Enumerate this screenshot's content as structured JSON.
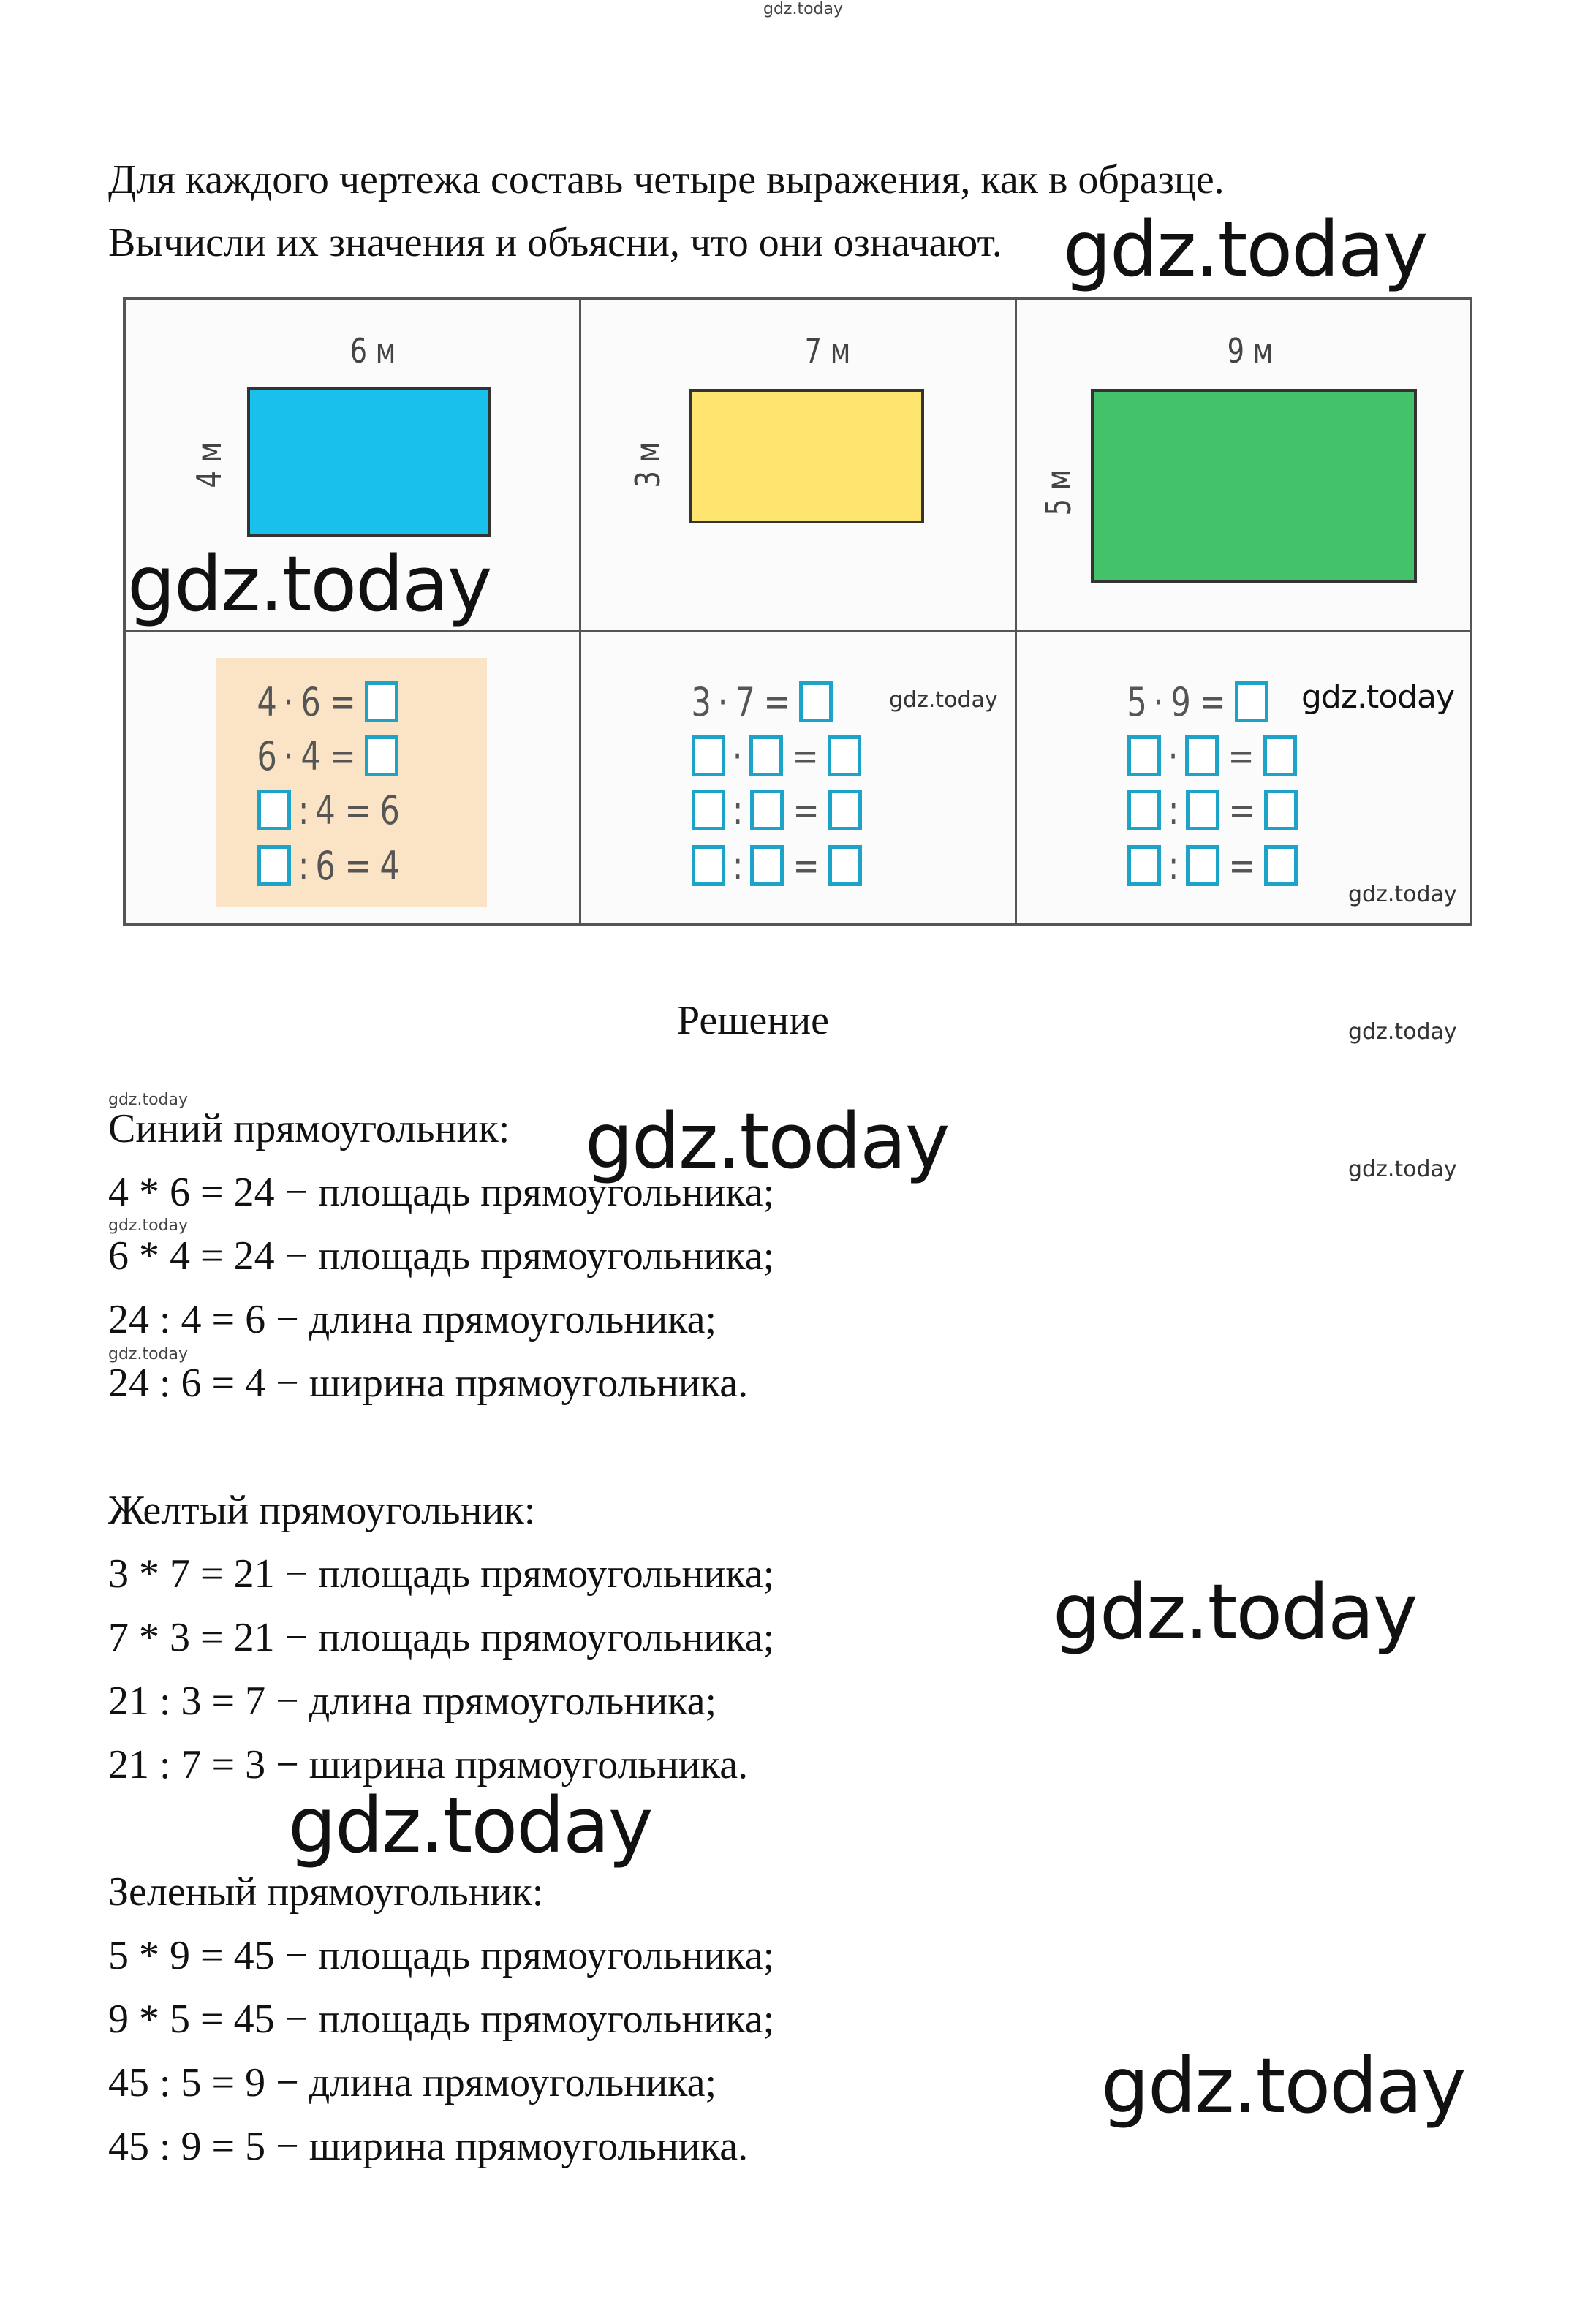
{
  "task": {
    "line1": "Для каждого чертежа составь четыре выражения, как в образце.",
    "line2": "Вычисли их значения и объясни, что они означают."
  },
  "figures": [
    {
      "color": "#19c0ec",
      "width_label": "6 м",
      "height_label": "4 м"
    },
    {
      "color": "#fde56f",
      "width_label": "7 м",
      "height_label": "3 м"
    },
    {
      "color": "#43c26a",
      "width_label": "9 м",
      "height_label": "5 м"
    }
  ],
  "box_color": "#1ea3c8",
  "sample_bg": "#fbe3c6",
  "equations": [
    [
      [
        "4",
        "·",
        "6",
        "=",
        "box"
      ],
      [
        "6",
        "·",
        "4",
        "=",
        "box"
      ],
      [
        "box",
        ":",
        "4",
        "=",
        "6"
      ],
      [
        "box",
        ":",
        "6",
        "=",
        "4"
      ]
    ],
    [
      [
        "3",
        "·",
        "7",
        "=",
        "box"
      ],
      [
        "box",
        "·",
        "box",
        "=",
        "box"
      ],
      [
        "box",
        ":",
        "box",
        "=",
        "box"
      ],
      [
        "box",
        ":",
        "box",
        "=",
        "box"
      ]
    ],
    [
      [
        "5",
        "·",
        "9",
        "=",
        "box"
      ],
      [
        "box",
        "·",
        "box",
        "=",
        "box"
      ],
      [
        "box",
        ":",
        "box",
        "=",
        "box"
      ],
      [
        "box",
        ":",
        "box",
        "=",
        "box"
      ]
    ]
  ],
  "solution": {
    "heading": "Решение",
    "sections": [
      {
        "title": "Синий прямоугольник:",
        "lines": [
          "4 * 6 = 24 − площадь прямоугольника;",
          "6 * 4 = 24 − площадь прямоугольника;",
          "24 : 4 = 6 − длина прямоугольника;",
          "24 : 6 = 4 − ширина прямоугольника."
        ]
      },
      {
        "title": "Желтый прямоугольник:",
        "lines": [
          "3 * 7 = 21 − площадь прямоугольника;",
          "7 * 3 = 21 − площадь прямоугольника;",
          "21 : 3 = 7 − длина прямоугольника;",
          "21 : 7 = 3 − ширина прямоугольника."
        ]
      },
      {
        "title": "Зеленый прямоугольник:",
        "lines": [
          "5 * 9 = 45 − площадь прямоугольника;",
          "9 * 5 = 45 − площадь прямоугольника;",
          "45 : 5 = 9 − длина прямоугольника;",
          "45 : 9 = 5 − ширина прямоугольника."
        ]
      }
    ]
  },
  "watermark": "gdz.today"
}
